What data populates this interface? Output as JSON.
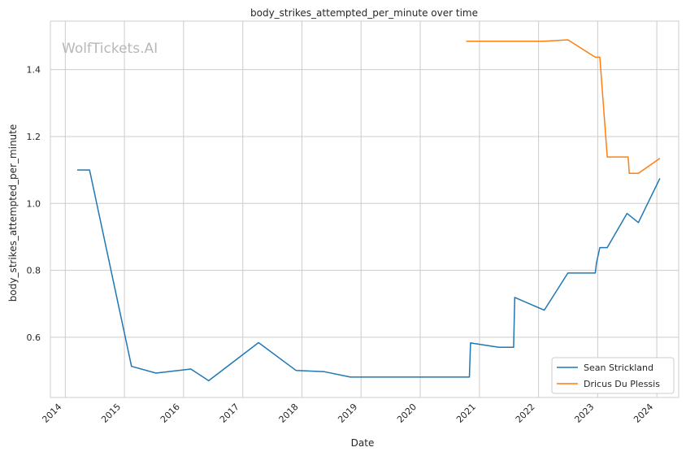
{
  "chart_data": {
    "type": "line",
    "title": "body_strikes_attempted_per_minute over time",
    "xlabel": "Date",
    "ylabel": "body_strikes_attempted_per_minute",
    "xlim": [
      "2013-10-01",
      "2024-05-15"
    ],
    "ylim": [
      0.42,
      1.545
    ],
    "x_ticks": [
      "2014",
      "2015",
      "2016",
      "2017",
      "2018",
      "2019",
      "2020",
      "2021",
      "2022",
      "2023",
      "2024"
    ],
    "y_ticks": [
      "0.6",
      "0.8",
      "1.0",
      "1.2",
      "1.4"
    ],
    "grid": true,
    "legend_position": "lower-right",
    "watermark": "WolfTickets.AI",
    "series": [
      {
        "name": "Sean Strickland",
        "color": "#1f77b4",
        "points": [
          [
            "2014-03-15",
            1.1
          ],
          [
            "2014-05-31",
            1.1
          ],
          [
            "2015-02-14",
            0.513
          ],
          [
            "2015-07-15",
            0.493
          ],
          [
            "2016-02-15",
            0.505
          ],
          [
            "2016-06-04",
            0.47
          ],
          [
            "2017-04-08",
            0.584
          ],
          [
            "2017-11-25",
            0.501
          ],
          [
            "2018-05-20",
            0.497
          ],
          [
            "2018-10-27",
            0.481
          ],
          [
            "2020-10-31",
            0.481
          ],
          [
            "2020-11-07",
            0.583
          ],
          [
            "2021-05-01",
            0.57
          ],
          [
            "2021-07-31",
            0.57
          ],
          [
            "2021-08-07",
            0.719
          ],
          [
            "2022-02-05",
            0.681
          ],
          [
            "2022-07-01",
            0.792
          ],
          [
            "2022-12-17",
            0.792
          ],
          [
            "2022-12-24",
            0.822
          ],
          [
            "2023-01-14",
            0.868
          ],
          [
            "2023-03-01",
            0.868
          ],
          [
            "2023-07-01",
            0.97
          ],
          [
            "2023-09-09",
            0.943
          ],
          [
            "2024-01-20",
            1.075
          ]
        ]
      },
      {
        "name": "Dricus Du Plessis",
        "color": "#ff7f0e",
        "points": [
          [
            "2020-10-11",
            1.485
          ],
          [
            "2022-01-31",
            1.485
          ],
          [
            "2022-07-01",
            1.489
          ],
          [
            "2022-12-17",
            1.437
          ],
          [
            "2023-01-14",
            1.437
          ],
          [
            "2023-03-01",
            1.139
          ],
          [
            "2023-07-08",
            1.139
          ],
          [
            "2023-07-15",
            1.09
          ],
          [
            "2023-09-09",
            1.09
          ],
          [
            "2024-01-20",
            1.135
          ]
        ]
      }
    ]
  }
}
